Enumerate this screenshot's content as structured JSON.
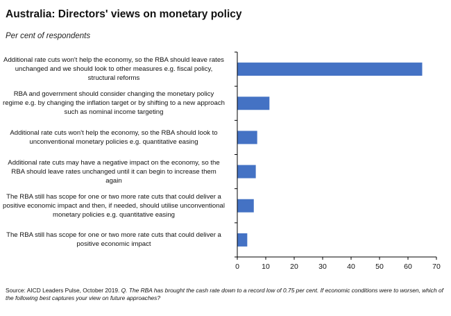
{
  "title": "Australia: Directors' views on monetary policy",
  "subtitle": "Per cent of respondents",
  "source_prefix": "Source: AICD Leaders Pulse, October 2019.",
  "source_question": "Q. The RBA has brought the cash rate down to a record low of 0.75 per cent. If economic conditions were to worsen, which of the following best captures your view on future approaches?",
  "colors": {
    "bar": "#4472c4",
    "axis": "#000000"
  },
  "chart_data": {
    "type": "bar",
    "orientation": "horizontal",
    "categories": [
      "Additional rate cuts won't help the economy, so the RBA should leave rates unchanged and we should look to other measures e.g. fiscal policy, structural reforms",
      "RBA and government should consider changing the monetary policy regime e.g. by changing the inflation target or by shifting to a new approach such as nominal income targeting",
      "Additional rate cuts won't help the economy, so the RBA should look to unconventional monetary policies e.g. quantitative easing",
      "Additional rate cuts may have a negative impact on the economy, so the RBA should leave rates unchanged until it can begin to increase them again",
      "The RBA still has scope for one or two more rate cuts that could deliver a positive economic impact and then, if needed, should utilise unconventional monetary policies e.g. quantitative easing",
      "The RBA still has scope for one or two more rate cuts that could deliver a positive economic impact"
    ],
    "values": [
      65,
      11.3,
      7,
      6.5,
      5.8,
      3.5
    ],
    "xlim": [
      0,
      70
    ],
    "xticks": [
      "0",
      "10",
      "20",
      "30",
      "40",
      "50",
      "60",
      "70"
    ],
    "grid": false
  }
}
